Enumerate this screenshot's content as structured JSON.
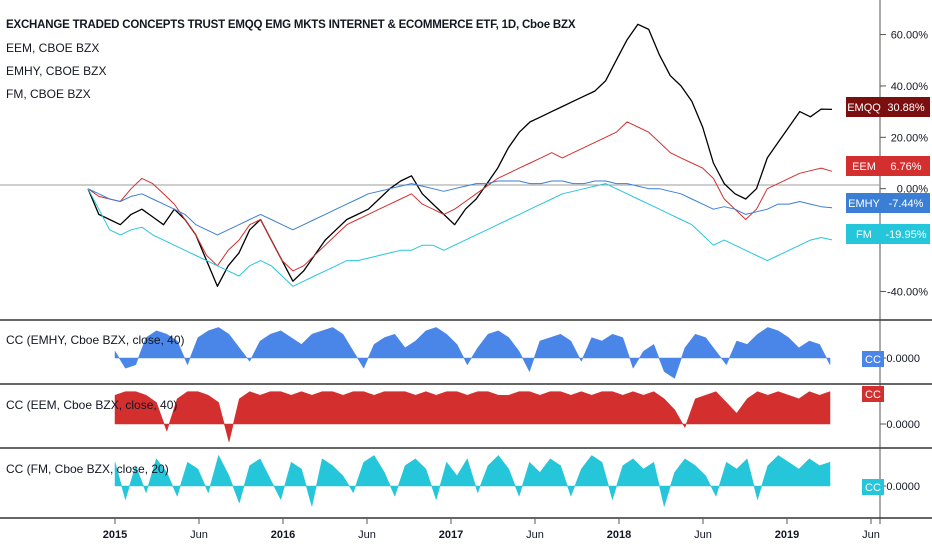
{
  "legend": {
    "title": "EXCHANGE TRADED CONCEPTS TRUST EMQQ EMG MKTS INTERNET & ECOMMERCE ETF, 1D, Cboe BZX",
    "items": [
      "EEM, CBOE BZX",
      "EMHY, CBOE BZX",
      "FM, CBOE BZX"
    ]
  },
  "panes": {
    "cc_emhy": "CC (EMHY, Cboe BZX, close, 40)",
    "cc_eem": "CC (EEM, Cboe BZX, close, 40)",
    "cc_fm": "CC (FM, Cboe BZX, close, 20)"
  },
  "chart_data": {
    "type": "line",
    "x_ticks": [
      "2015",
      "Jun",
      "2016",
      "Jun",
      "2017",
      "Jun",
      "2018",
      "Jun",
      "2019",
      "Jun"
    ],
    "y_ticks": [
      "60.00%",
      "40.00%",
      "20.00%",
      "0.00%",
      "-40.00%"
    ],
    "ylim": [
      -48,
      68
    ],
    "x_start": "2014-11",
    "series": [
      {
        "name": "EMQQ",
        "color": "#000000",
        "label": "30.88%",
        "values": [
          0,
          -10,
          -12,
          -14,
          -10,
          -8,
          -11,
          -14,
          -8,
          -12,
          -18,
          -28,
          -38,
          -30,
          -25,
          -16,
          -12,
          -20,
          -28,
          -36,
          -32,
          -26,
          -20,
          -16,
          -12,
          -10,
          -8,
          -4,
          0,
          3,
          5,
          -2,
          -6,
          -10,
          -14,
          -8,
          -4,
          2,
          8,
          16,
          22,
          26,
          28,
          30,
          32,
          34,
          36,
          38,
          42,
          50,
          58,
          64,
          62,
          52,
          44,
          40,
          34,
          24,
          10,
          2,
          -2,
          -4,
          0,
          12,
          18,
          24,
          30,
          28,
          31,
          30.88
        ]
      },
      {
        "name": "EEM",
        "color": "#d32f2f",
        "label": "6.76%",
        "values": [
          0,
          -3,
          -4,
          -5,
          0,
          4,
          2,
          -2,
          -6,
          -12,
          -18,
          -26,
          -30,
          -24,
          -20,
          -14,
          -12,
          -20,
          -28,
          -32,
          -30,
          -26,
          -22,
          -18,
          -14,
          -12,
          -10,
          -8,
          -6,
          -4,
          -2,
          -6,
          -8,
          -10,
          -8,
          -5,
          -2,
          1,
          4,
          6,
          8,
          10,
          12,
          14,
          12,
          14,
          16,
          18,
          20,
          22,
          26,
          24,
          22,
          18,
          14,
          12,
          10,
          8,
          4,
          -4,
          -8,
          -12,
          -8,
          0,
          2,
          4,
          6,
          7,
          8,
          6.76
        ]
      },
      {
        "name": "EMHY",
        "color": "#3a7fd5",
        "label": "-7.44%",
        "values": [
          0,
          -2,
          -4,
          -5,
          -3,
          -2,
          -4,
          -6,
          -8,
          -10,
          -14,
          -16,
          -18,
          -16,
          -14,
          -12,
          -10,
          -12,
          -14,
          -16,
          -14,
          -12,
          -10,
          -8,
          -6,
          -4,
          -2,
          -1,
          0,
          1,
          2,
          1,
          0,
          -1,
          0,
          1,
          2,
          2,
          3,
          3,
          3,
          2,
          2,
          3,
          3,
          2,
          2,
          3,
          3,
          2,
          2,
          1,
          0,
          0,
          -1,
          -2,
          -4,
          -6,
          -8,
          -7,
          -8,
          -10,
          -9,
          -8,
          -6,
          -6,
          -5,
          -6,
          -7,
          -7.44
        ]
      },
      {
        "name": "FM",
        "color": "#26c6da",
        "label": "-19.95%",
        "values": [
          0,
          -8,
          -16,
          -18,
          -16,
          -15,
          -18,
          -20,
          -22,
          -24,
          -26,
          -28,
          -30,
          -32,
          -34,
          -30,
          -28,
          -30,
          -34,
          -38,
          -36,
          -34,
          -32,
          -30,
          -28,
          -28,
          -27,
          -26,
          -25,
          -24,
          -24,
          -22,
          -22,
          -24,
          -22,
          -20,
          -18,
          -16,
          -14,
          -12,
          -10,
          -8,
          -6,
          -4,
          -2,
          -1,
          0,
          1,
          2,
          0,
          -2,
          -4,
          -6,
          -8,
          -10,
          -12,
          -14,
          -18,
          -22,
          -20,
          -22,
          -24,
          -26,
          -28,
          -26,
          -24,
          -22,
          -20,
          -19,
          -19.95
        ]
      }
    ],
    "cc_panes": [
      {
        "name": "CC (EMHY, Cboe BZX, close, 40)",
        "color": "#4a86e8",
        "zero_label": "0.0000",
        "badge": "CC",
        "values": [
          0.2,
          -0.3,
          -0.2,
          0.6,
          0.8,
          0.7,
          0.5,
          -0.2,
          0.6,
          0.8,
          0.9,
          0.7,
          0.3,
          -0.1,
          0.5,
          0.7,
          0.8,
          0.6,
          0.4,
          0.7,
          0.8,
          0.9,
          0.7,
          0.2,
          -0.3,
          0.4,
          0.6,
          0.7,
          0.3,
          0.5,
          0.8,
          0.9,
          0.7,
          0.4,
          -0.2,
          0.3,
          0.7,
          0.8,
          0.6,
          0.2,
          -0.4,
          0.5,
          0.6,
          0.7,
          0.5,
          -0.1,
          0.6,
          0.5,
          0.7,
          0.6,
          -0.3,
          0.2,
          0.4,
          -0.4,
          -0.6,
          0.3,
          0.7,
          0.6,
          0.2,
          -0.2,
          0.5,
          0.4,
          0.7,
          0.9,
          0.8,
          0.6,
          0.3,
          0.5,
          0.4,
          -0.2
        ]
      },
      {
        "name": "CC (EEM, Cboe BZX, close, 40)",
        "color": "#d32f2f",
        "zero_label": "0.0000",
        "badge": "CC",
        "values": [
          0.8,
          0.9,
          0.9,
          0.8,
          0.6,
          -0.2,
          0.7,
          0.9,
          0.9,
          0.8,
          0.6,
          -0.5,
          0.7,
          0.9,
          0.8,
          0.9,
          0.9,
          0.8,
          0.9,
          0.8,
          0.9,
          0.9,
          0.8,
          0.9,
          0.9,
          0.8,
          0.9,
          0.9,
          0.9,
          0.8,
          0.9,
          0.8,
          0.9,
          0.9,
          0.8,
          0.9,
          0.9,
          0.8,
          0.8,
          0.9,
          0.9,
          0.8,
          0.9,
          0.9,
          0.8,
          0.9,
          0.8,
          0.9,
          0.9,
          0.8,
          0.9,
          0.8,
          0.9,
          0.7,
          0.4,
          -0.1,
          0.7,
          0.8,
          0.9,
          0.6,
          0.3,
          0.7,
          0.9,
          0.8,
          0.9,
          0.8,
          0.7,
          0.9,
          0.8,
          0.9
        ]
      },
      {
        "name": "CC (FM, Cboe BZX, close, 20)",
        "color": "#26c6da",
        "zero_label": "0.0000",
        "badge": "CC",
        "values": [
          0.7,
          -0.4,
          0.6,
          -0.2,
          0.8,
          0.4,
          -0.3,
          0.7,
          0.5,
          -0.2,
          0.9,
          0.3,
          -0.5,
          0.6,
          0.8,
          0.2,
          -0.4,
          0.7,
          0.5,
          -0.6,
          0.8,
          0.6,
          0.3,
          -0.2,
          0.7,
          0.9,
          0.4,
          -0.3,
          0.6,
          0.8,
          0.5,
          -0.4,
          0.7,
          0.3,
          0.8,
          -0.2,
          0.6,
          0.9,
          0.5,
          -0.3,
          0.7,
          0.4,
          0.8,
          0.6,
          -0.3,
          0.5,
          0.9,
          0.7,
          -0.4,
          0.6,
          0.8,
          0.5,
          0.7,
          -0.6,
          0.4,
          0.8,
          0.6,
          0.3,
          -0.3,
          0.7,
          0.5,
          0.8,
          -0.4,
          0.6,
          0.9,
          0.7,
          0.5,
          0.8,
          0.6,
          0.7
        ]
      }
    ]
  }
}
